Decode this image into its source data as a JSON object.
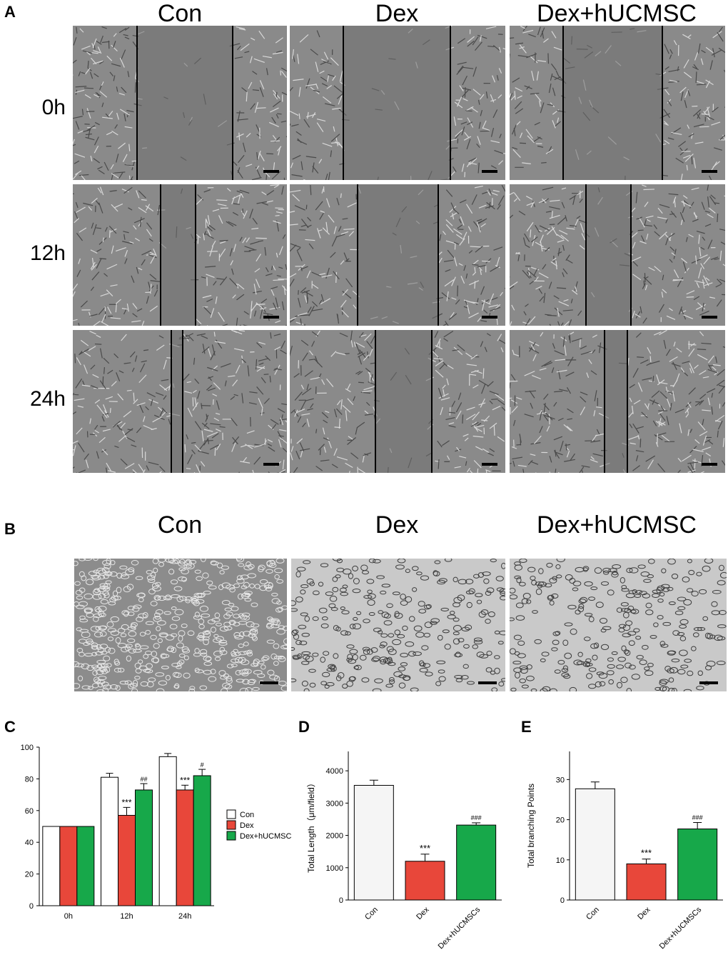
{
  "panels": {
    "A": "A",
    "B": "B",
    "C": "C",
    "D": "D",
    "E": "E"
  },
  "panelA": {
    "columns": [
      "Con",
      "Dex",
      "Dex+hUCMSC"
    ],
    "rows": [
      "0h",
      "12h",
      "24h"
    ]
  },
  "panelB": {
    "columns": [
      "Con",
      "Dex",
      "Dex+hUCMSC"
    ]
  },
  "chart_data": [
    {
      "id": "C",
      "type": "bar",
      "categories": [
        "0h",
        "12h",
        "24h"
      ],
      "series": [
        {
          "name": "Con",
          "color": "#ffffff",
          "values": [
            50,
            81,
            94
          ],
          "errors": [
            0,
            2.5,
            2
          ]
        },
        {
          "name": "Dex",
          "color": "#e8473a",
          "values": [
            50,
            57,
            73
          ],
          "errors": [
            0,
            5,
            3
          ]
        },
        {
          "name": "Dex+hUCMSC",
          "color": "#17a84a",
          "values": [
            50,
            73,
            82
          ],
          "errors": [
            0,
            4,
            4
          ]
        }
      ],
      "annotations": [
        {
          "category": "12h",
          "series": "Dex",
          "text": "***"
        },
        {
          "category": "12h",
          "series": "Dex+hUCMSC",
          "text": "##"
        },
        {
          "category": "24h",
          "series": "Dex",
          "text": "***"
        },
        {
          "category": "24h",
          "series": "Dex+hUCMSC",
          "text": "#"
        }
      ],
      "ylim": [
        0,
        100
      ],
      "yticks": [
        0,
        20,
        40,
        60,
        80,
        100
      ],
      "xlabel": "",
      "ylabel": "",
      "legend": "right"
    },
    {
      "id": "D",
      "type": "bar",
      "categories": [
        "Con",
        "Dex",
        "Dex+hUCMSCs"
      ],
      "values": [
        3550,
        1200,
        2320
      ],
      "errors": [
        160,
        220,
        70
      ],
      "colors": [
        "#f5f5f5",
        "#e8473a",
        "#17a84a"
      ],
      "annotations": [
        "",
        "***",
        "###"
      ],
      "ylabel": "Total Length（μm/field）",
      "ylim": [
        0,
        4600
      ],
      "yticks": [
        0,
        1000,
        2000,
        3000,
        4000
      ]
    },
    {
      "id": "E",
      "type": "bar",
      "categories": [
        "Con",
        "Dex",
        "Dex+hUCMSCs"
      ],
      "values": [
        27.7,
        9,
        17.7
      ],
      "errors": [
        1.7,
        1.2,
        1.6
      ],
      "colors": [
        "#f5f5f5",
        "#e8473a",
        "#17a84a"
      ],
      "annotations": [
        "",
        "***",
        "###"
      ],
      "ylabel": "Total branching Points",
      "ylim": [
        0,
        37
      ],
      "yticks": [
        0,
        10,
        20,
        30
      ]
    }
  ]
}
